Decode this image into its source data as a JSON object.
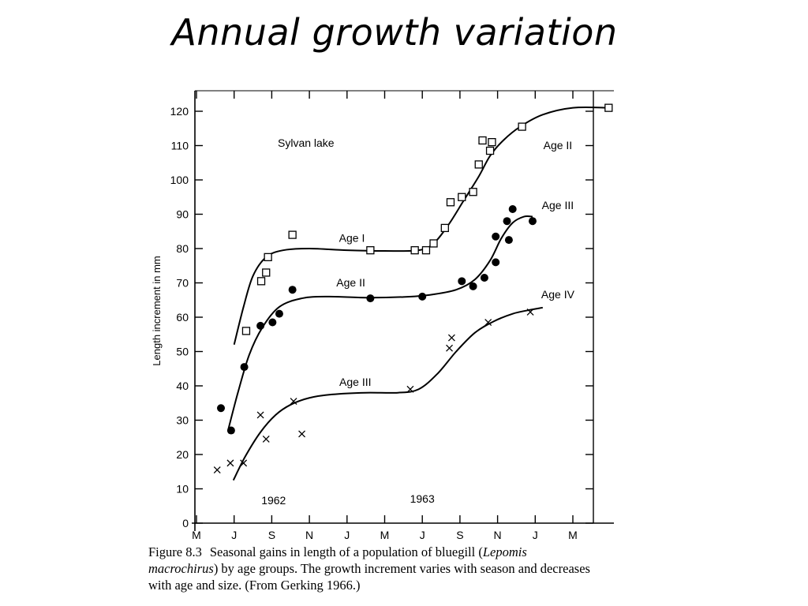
{
  "slide": {
    "title": "Annual growth variation"
  },
  "caption": {
    "figure_number": "Figure 8.3",
    "text_before_italic": "Seasonal gains in length of a population of bluegill (",
    "italic": "Lepomis macrochirus",
    "text_after_italic": ") by age groups. The growth increment varies with season and decreases with age and size. (From Gerking 1966.)"
  },
  "chart_data": {
    "type": "scatter",
    "title": "",
    "annotation": "Sylvan lake",
    "ylabel": "Length increment in mm",
    "xlabel": "",
    "ylim": [
      0,
      125
    ],
    "yticks": [
      0,
      10,
      20,
      30,
      40,
      50,
      60,
      70,
      80,
      90,
      100,
      110,
      120
    ],
    "x_ticks": [
      {
        "month": 0,
        "label": "M"
      },
      {
        "month": 1,
        "label": "J"
      },
      {
        "month": 2,
        "label": "S"
      },
      {
        "month": 3,
        "label": "N"
      },
      {
        "month": 4,
        "label": "J"
      },
      {
        "month": 5,
        "label": "M"
      },
      {
        "month": 6,
        "label": "J"
      },
      {
        "month": 7,
        "label": "S"
      },
      {
        "month": 8,
        "label": "N"
      },
      {
        "month": 9,
        "label": "J"
      },
      {
        "month": 10,
        "label": "M"
      }
    ],
    "x_unit_note": "x in two-month intervals from May 1962",
    "xlim": [
      0,
      10.45
    ],
    "year_labels": [
      {
        "label": "1962",
        "x": 2.05,
        "y": 5.5
      },
      {
        "label": "1963",
        "x": 6.0,
        "y": 6.0
      }
    ],
    "series": [
      {
        "name": "Age I",
        "year_1963_name": "Age II",
        "marker": "open-square",
        "points": [
          [
            1.32,
            56
          ],
          [
            1.72,
            70.5
          ],
          [
            1.85,
            73
          ],
          [
            1.9,
            77.5
          ],
          [
            2.55,
            84
          ],
          [
            4.62,
            79.5
          ],
          [
            5.8,
            79.5
          ],
          [
            6.1,
            79.5
          ],
          [
            6.3,
            81.5
          ],
          [
            6.6,
            86
          ],
          [
            6.75,
            93.5
          ],
          [
            7.05,
            95
          ],
          [
            7.35,
            96.5
          ],
          [
            7.5,
            104.5
          ],
          [
            7.6,
            111.5
          ],
          [
            7.8,
            108.5
          ],
          [
            7.85,
            111
          ],
          [
            8.65,
            115.5
          ],
          [
            10.95,
            121
          ]
        ]
      },
      {
        "name": "Age II",
        "year_1963_name": "Age III",
        "marker": "filled-circle",
        "points": [
          [
            0.65,
            33.5
          ],
          [
            0.92,
            27
          ],
          [
            1.27,
            45.5
          ],
          [
            1.7,
            57.5
          ],
          [
            2.02,
            58.5
          ],
          [
            2.2,
            61
          ],
          [
            2.55,
            68
          ],
          [
            4.62,
            65.5
          ],
          [
            6.0,
            66
          ],
          [
            7.05,
            70.5
          ],
          [
            7.35,
            69
          ],
          [
            7.65,
            71.5
          ],
          [
            7.95,
            76
          ],
          [
            7.95,
            83.5
          ],
          [
            8.25,
            88
          ],
          [
            8.3,
            82.5
          ],
          [
            8.4,
            91.5
          ],
          [
            8.93,
            88
          ]
        ]
      },
      {
        "name": "Age III",
        "year_1963_name": "Age IV",
        "marker": "cross",
        "points": [
          [
            0.55,
            15.5
          ],
          [
            0.9,
            17.5
          ],
          [
            1.25,
            17.5
          ],
          [
            1.7,
            31.5
          ],
          [
            1.85,
            24.5
          ],
          [
            2.58,
            35.5
          ],
          [
            2.8,
            26
          ],
          [
            5.68,
            39
          ],
          [
            6.72,
            51
          ],
          [
            6.78,
            54
          ],
          [
            7.75,
            58.5
          ],
          [
            8.87,
            61.5
          ]
        ]
      }
    ],
    "curves": [
      {
        "label": "Age I",
        "dashed_part": true,
        "points": [
          [
            1.0,
            52
          ],
          [
            1.25,
            63
          ],
          [
            1.5,
            72
          ],
          [
            1.85,
            77.5
          ],
          [
            2.3,
            79.5
          ],
          [
            3.0,
            80
          ],
          [
            4.0,
            79.5
          ],
          [
            5.0,
            79.3
          ],
          [
            5.9,
            79.5
          ],
          [
            6.3,
            81.5
          ],
          [
            6.7,
            87
          ],
          [
            7.1,
            94
          ],
          [
            7.5,
            101
          ],
          [
            7.8,
            107
          ],
          [
            8.15,
            111.5
          ],
          [
            8.6,
            115.5
          ],
          [
            9.2,
            119
          ],
          [
            10.0,
            121
          ],
          [
            10.95,
            121
          ]
        ]
      },
      {
        "label": "Age II",
        "dashed_part": true,
        "points": [
          [
            0.85,
            27.5
          ],
          [
            1.1,
            38
          ],
          [
            1.4,
            49
          ],
          [
            1.75,
            57
          ],
          [
            2.2,
            63
          ],
          [
            2.8,
            65.5
          ],
          [
            3.5,
            66
          ],
          [
            4.5,
            65.7
          ],
          [
            5.5,
            65.9
          ],
          [
            6.2,
            66.5
          ],
          [
            6.9,
            68
          ],
          [
            7.4,
            71
          ],
          [
            7.8,
            76.5
          ],
          [
            8.1,
            83
          ],
          [
            8.4,
            87.5
          ],
          [
            8.7,
            89.3
          ],
          [
            8.93,
            89.3
          ]
        ]
      },
      {
        "label": "Age III",
        "dashed_part": false,
        "points": [
          [
            0.98,
            12.5
          ],
          [
            1.3,
            19.5
          ],
          [
            1.7,
            26.5
          ],
          [
            2.1,
            31.5
          ],
          [
            2.5,
            34.5
          ],
          [
            3.0,
            36.5
          ],
          [
            3.6,
            37.5
          ],
          [
            4.5,
            38
          ],
          [
            5.35,
            38
          ],
          [
            5.9,
            39
          ],
          [
            6.4,
            43.5
          ],
          [
            6.9,
            50
          ],
          [
            7.4,
            55.5
          ],
          [
            7.9,
            58.8
          ],
          [
            8.4,
            61
          ],
          [
            8.8,
            62
          ],
          [
            9.2,
            62.8
          ]
        ]
      }
    ],
    "curve_labels": [
      {
        "text": "Age I",
        "x": 4.13,
        "y": 82
      },
      {
        "text": "Age II",
        "x": 4.1,
        "y": 69
      },
      {
        "text": "Age III",
        "x": 4.22,
        "y": 40
      },
      {
        "text": "Age II",
        "x": 9.6,
        "y": 109
      },
      {
        "text": "Age III",
        "x": 9.6,
        "y": 91.5
      },
      {
        "text": "Age IV",
        "x": 9.6,
        "y": 65.5
      }
    ],
    "grid": false,
    "legend": "none"
  }
}
